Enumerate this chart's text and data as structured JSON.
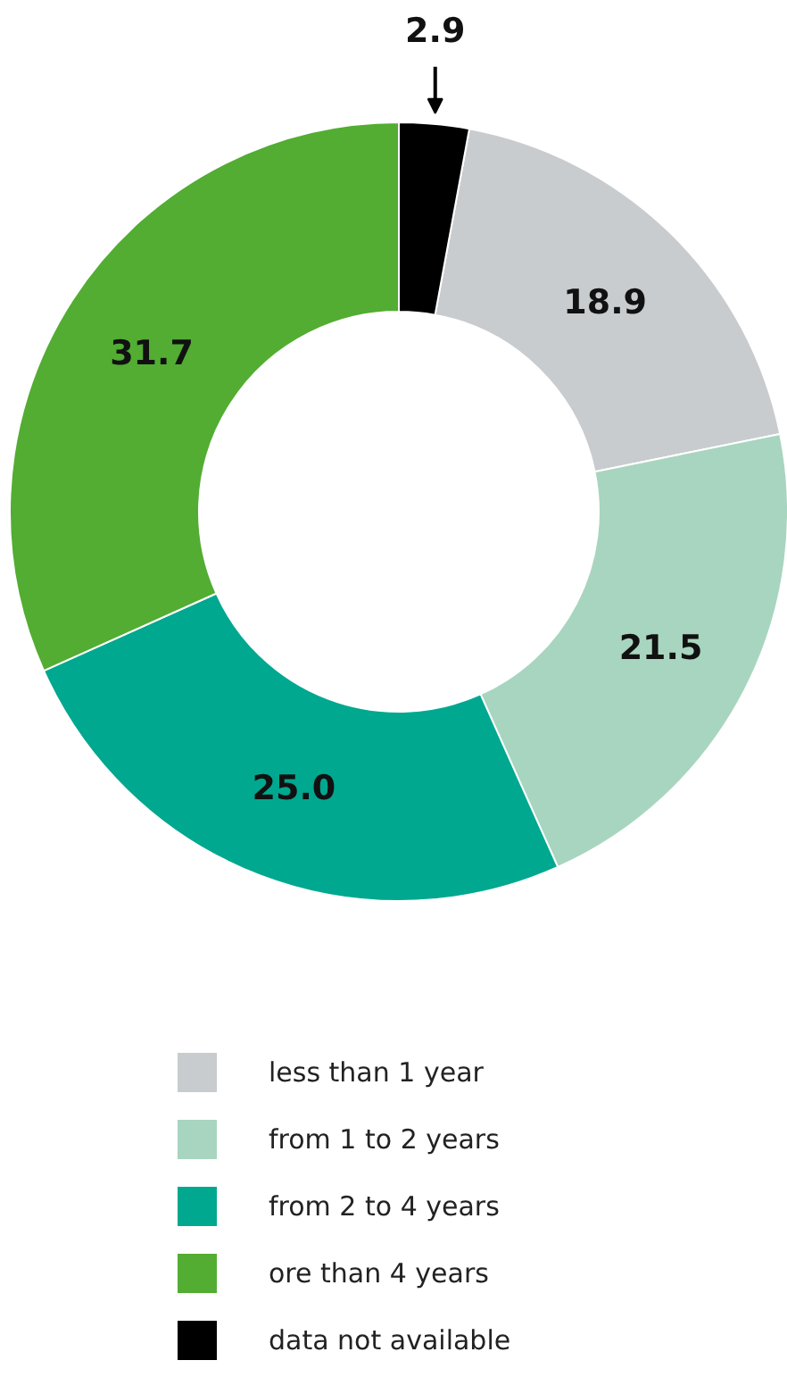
{
  "chart_data": {
    "type": "donut",
    "categories": [
      "less than 1 year",
      "from 1 to 2 years",
      "from 2 to 4 years",
      "ore than 4 years",
      "data not available"
    ],
    "values": [
      18.9,
      21.5,
      25.0,
      31.7,
      2.9
    ],
    "colors": [
      "#c8cccf",
      "#a8d5bf",
      "#00a88f",
      "#52ad32",
      "#000000"
    ],
    "value_labels": [
      "18.9",
      "21.5",
      "25.0",
      "31.7",
      "2.9"
    ],
    "legend": "bottom"
  }
}
